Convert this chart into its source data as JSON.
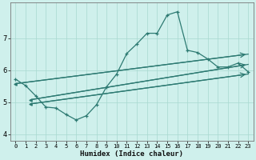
{
  "xlabel": "Humidex (Indice chaleur)",
  "bg_color": "#cff0ec",
  "line_color": "#2d7a72",
  "grid_color": "#a8d8d0",
  "xlim": [
    -0.5,
    23.5
  ],
  "ylim": [
    3.8,
    8.1
  ],
  "xticks": [
    0,
    1,
    2,
    3,
    4,
    5,
    6,
    7,
    8,
    9,
    10,
    11,
    12,
    13,
    14,
    15,
    16,
    17,
    18,
    19,
    20,
    21,
    22,
    23
  ],
  "yticks": [
    4,
    5,
    6,
    7
  ],
  "curve_x": [
    0,
    1,
    2,
    3,
    4,
    5,
    6,
    7,
    8,
    9,
    10,
    11,
    12,
    13,
    14,
    15,
    16,
    17,
    18,
    19,
    20,
    21,
    22,
    23
  ],
  "curve_y": [
    5.72,
    5.52,
    5.2,
    4.85,
    4.82,
    4.62,
    4.45,
    4.58,
    4.92,
    5.48,
    5.88,
    6.52,
    6.82,
    7.15,
    7.15,
    7.72,
    7.82,
    6.62,
    6.55,
    6.35,
    6.1,
    6.1,
    6.22,
    5.95
  ],
  "line1_x": [
    0,
    23
  ],
  "line1_y": [
    5.58,
    6.5
  ],
  "line2_x": [
    1.5,
    23
  ],
  "line2_y": [
    5.08,
    6.18
  ],
  "line3_x": [
    1.5,
    23
  ],
  "line3_y": [
    4.95,
    5.88
  ]
}
